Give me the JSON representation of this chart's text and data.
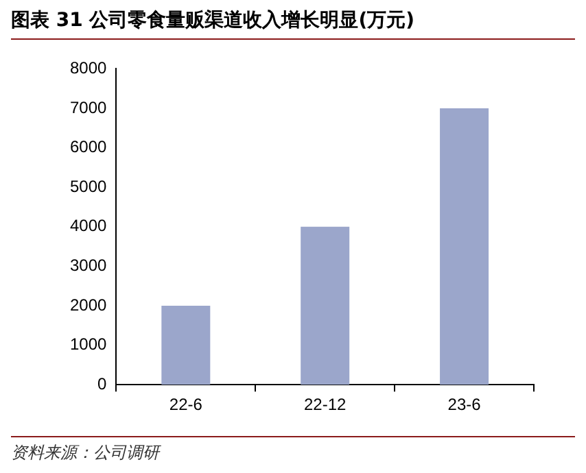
{
  "chart_data": {
    "type": "bar",
    "title": "图表 31  公司零食量贩渠道收入增长明显(万元)",
    "categories": [
      "22-6",
      "22-12",
      "23-6"
    ],
    "values": [
      2000,
      4000,
      7000
    ],
    "color": "#9ba6cb",
    "ylim": [
      0,
      8000
    ],
    "yticks": [
      0,
      1000,
      2000,
      3000,
      4000,
      5000,
      6000,
      7000,
      8000
    ],
    "grid": false,
    "annotations": [
      "资料来源：公司调研"
    ]
  }
}
